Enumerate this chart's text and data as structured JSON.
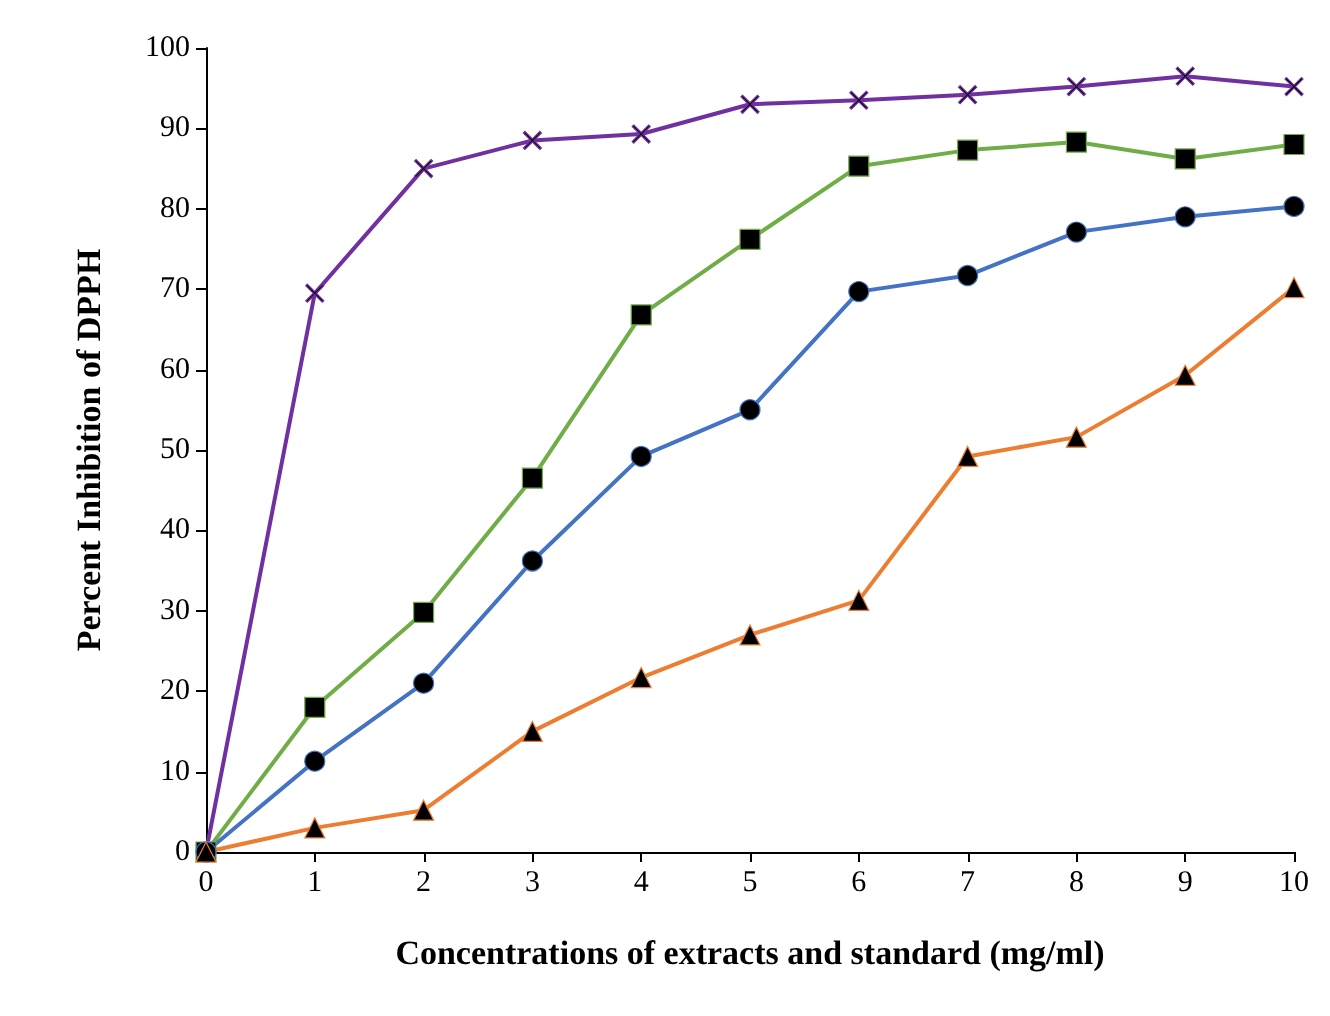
{
  "chart_data": {
    "type": "line",
    "xlabel": "Concentrations of extracts and standard (mg/ml)",
    "ylabel": "Percent Inhibition of DPPH",
    "x": [
      0,
      1,
      2,
      3,
      4,
      5,
      6,
      7,
      8,
      9,
      10
    ],
    "xlim": [
      0,
      10
    ],
    "xticks": [
      0,
      1,
      2,
      3,
      4,
      5,
      6,
      7,
      8,
      9,
      10
    ],
    "ylim": [
      0,
      100
    ],
    "yticks": [
      0,
      10,
      20,
      30,
      40,
      50,
      60,
      70,
      80,
      90,
      100
    ],
    "grid": false,
    "line_style": "solid",
    "series": [
      {
        "color": "#7030a0",
        "marker": "cross",
        "values": [
          0,
          69.5,
          85,
          88.5,
          89.3,
          93,
          93.5,
          94.2,
          95.2,
          96.5,
          95.2
        ]
      },
      {
        "color": "#70ad47",
        "marker": "square",
        "values": [
          0,
          18,
          29.8,
          46.5,
          66.8,
          76.2,
          85.3,
          87.3,
          88.3,
          86.2,
          88
        ]
      },
      {
        "color": "#4472c4",
        "marker": "circle",
        "values": [
          0,
          11.3,
          21,
          36.2,
          49.2,
          55,
          69.7,
          71.7,
          77.1,
          79,
          80.3
        ]
      },
      {
        "color": "#ed7d31",
        "marker": "triangle",
        "values": [
          0,
          3,
          5.2,
          15,
          21.7,
          27,
          31.3,
          49.2,
          51.6,
          59.3,
          70.2
        ]
      }
    ]
  }
}
